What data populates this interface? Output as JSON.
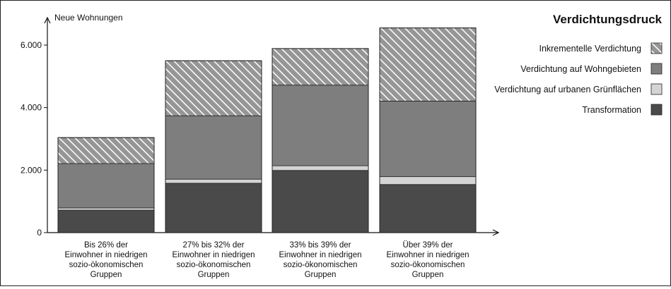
{
  "chart_data": {
    "type": "bar",
    "stacked": true,
    "title": "Verdichtungsdruck",
    "ylabel": "Neue Wohnungen",
    "xlabel": "",
    "ylim": [
      0,
      6600
    ],
    "yticks": [
      0,
      2000,
      4000,
      6000
    ],
    "ytick_labels": [
      "0",
      "2.000",
      "4.000",
      "6.000"
    ],
    "categories": [
      [
        "Bis 26% der",
        "Einwohner in niedrigen",
        "sozio-ökonomischen",
        "Gruppen"
      ],
      [
        "27% bis 32% der",
        "Einwohner in niedrigen",
        "sozio-ökonomischen",
        "Gruppen"
      ],
      [
        "33% bis 39% der",
        "Einwohner in niedrigen",
        "sozio-ökonomischen",
        "Gruppen"
      ],
      [
        "Über 39% der",
        "Einwohner in niedrigen",
        "sozio-ökonomischen",
        "Gruppen"
      ]
    ],
    "series": [
      {
        "name": "Transformation",
        "color": "#4a4a4a",
        "values": [
          720,
          1580,
          1990,
          1540
        ]
      },
      {
        "name": "Verdichtung auf urbanen Grünflächen",
        "color": "#d4d4d4",
        "values": [
          70,
          130,
          150,
          250
        ]
      },
      {
        "name": "Verdichtung auf Wohngebieten",
        "color": "#7e7e7e",
        "values": [
          1420,
          2030,
          2580,
          2420
        ]
      },
      {
        "name": "Inkrementelle Verdichtung",
        "color": "#969696",
        "hatch": true,
        "values": [
          830,
          1760,
          1170,
          2340
        ]
      }
    ],
    "legend": {
      "placement": "top-right",
      "order": [
        "Inkrementelle Verdichtung",
        "Verdichtung auf Wohngebieten",
        "Verdichtung auf urbanen Grünflächen",
        "Transformation"
      ]
    },
    "grid": false
  }
}
